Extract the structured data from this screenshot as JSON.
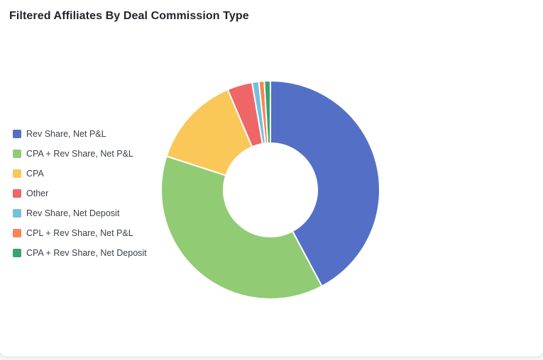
{
  "card": {
    "title": "Filtered Affiliates By Deal Commission Type"
  },
  "chart_data": {
    "type": "pie",
    "variant": "donut",
    "title": "Filtered Affiliates By Deal Commission Type",
    "legend_position": "left",
    "categories": [
      "Rev Share, Net P&L",
      "CPA + Rev Share, Net P&L",
      "CPA",
      "Other",
      "Rev Share, Net Deposit",
      "CPL + Rev Share, Net P&L",
      "CPA + Rev Share, Net Deposit"
    ],
    "values": [
      42.2,
      37.8,
      13.6,
      3.7,
      1.0,
      0.8,
      0.9
    ],
    "colors": [
      "#5470c6",
      "#91cc75",
      "#fac858",
      "#ee6666",
      "#73c0de",
      "#fc8452",
      "#3ba272"
    ]
  }
}
